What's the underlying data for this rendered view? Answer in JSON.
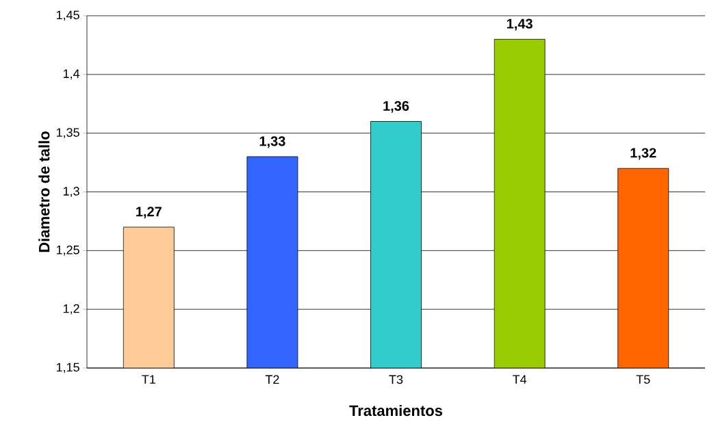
{
  "chart_data": {
    "type": "bar",
    "xlabel": "Tratamientos",
    "ylabel": "Diametro de tallo",
    "categories": [
      "T1",
      "T2",
      "T3",
      "T4",
      "T5"
    ],
    "values": [
      1.27,
      1.33,
      1.36,
      1.43,
      1.32
    ],
    "colors": [
      "#ffcc99",
      "#3366ff",
      "#33cccc",
      "#99cc00",
      "#ff6600"
    ],
    "value_labels": [
      "1,27",
      "1,33",
      "1,36",
      "1,43",
      "1,32"
    ],
    "ylim": [
      1.15,
      1.45
    ],
    "yticks": [
      {
        "value": 1.15,
        "label": "1,15"
      },
      {
        "value": 1.2,
        "label": "1,2"
      },
      {
        "value": 1.25,
        "label": "1,25"
      },
      {
        "value": 1.3,
        "label": "1,3"
      },
      {
        "value": 1.35,
        "label": "1,35"
      },
      {
        "value": 1.4,
        "label": "1,4"
      },
      {
        "value": 1.45,
        "label": "1,45"
      }
    ],
    "grid": "y"
  }
}
